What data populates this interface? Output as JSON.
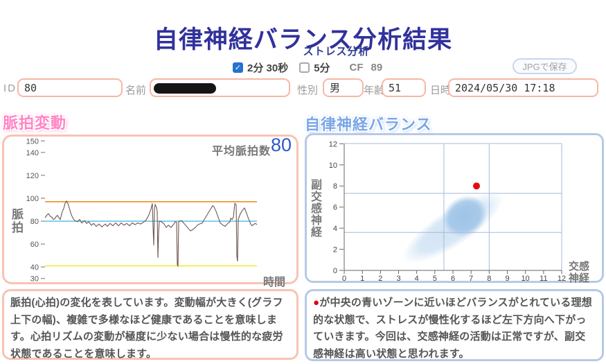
{
  "page": {
    "title": "自律神経バランス分析結果",
    "subtitle": "ストレス分析"
  },
  "controls": {
    "duration_2min_label": "2分 30秒",
    "duration_5min_label": "5分",
    "checkmark": "✓",
    "cf_label": "CF",
    "cf_value": "89",
    "save_button": "JPGで保存"
  },
  "patient": {
    "id_label": "ID",
    "id_value": "80",
    "name_label": "名前",
    "gender_label": "性別",
    "gender_value": "男",
    "age_label": "年齢",
    "age_value": "51",
    "datetime_label": "日時",
    "datetime_value": "2024/05/30 17:18"
  },
  "pulse_panel": {
    "header": "脈拍変動",
    "avg_label": "平均脈拍数",
    "avg_value": "80",
    "y_axis_label": "脈拍",
    "x_axis_label": "時間",
    "description": "脈拍(心拍)の変化を表しています。変動幅が大きく(グラフ上下の幅)、複雑で多様なほど健康であることを意味します。心拍リズムの変動が極度に少ない場合は慢性的な疲労状態であることを意味します。"
  },
  "balance_panel": {
    "header": "自律神経バランス",
    "y_axis_label": "副交感神経",
    "x_axis_label": "交感神経",
    "description_marker": "●",
    "description": "が中央の青いゾーンに近いほどバランスがとれている理想的な状態で、ストレスが慢性化するほど左下方向へ下がっていきます。今回は、交感神経の活動は正常ですが、副交感神経は高い状態と思われます。"
  },
  "chart_data": [
    {
      "type": "line",
      "title": "脈拍変動",
      "ylabel": "脈拍",
      "xlabel": "時間",
      "average_pulse": 80,
      "y_ticks": [
        150,
        140,
        120,
        100,
        80,
        60,
        40,
        30
      ],
      "ylim": [
        28,
        152
      ],
      "grid": false,
      "reference_lines": [
        {
          "value": 97,
          "color": "#f08c28"
        },
        {
          "value": 80,
          "color": "#5ac0ec"
        },
        {
          "value": 41,
          "color": "#f3ea38"
        }
      ],
      "series": [
        {
          "name": "pulse",
          "color": "#6d564e",
          "points": [
            [
              65,
              83
            ],
            [
              68,
              85.5
            ],
            [
              70,
              86.5
            ],
            [
              73,
              84
            ],
            [
              75,
              83.5
            ],
            [
              77,
              81.5
            ],
            [
              79,
              82
            ],
            [
              81,
              84
            ],
            [
              83,
              85
            ],
            [
              85,
              83
            ],
            [
              87,
              81.5
            ],
            [
              90,
              88.5
            ],
            [
              92,
              91
            ],
            [
              94,
              95.5
            ],
            [
              96,
              97.5
            ],
            [
              98,
              95.5
            ],
            [
              100,
              91.5
            ],
            [
              103,
              85.5
            ],
            [
              106,
              82
            ],
            [
              108,
              80.5
            ],
            [
              112,
              79.5
            ],
            [
              115,
              81.5
            ],
            [
              118,
              78.5
            ],
            [
              122,
              80.5
            ],
            [
              125,
              78
            ],
            [
              128,
              79.5
            ],
            [
              132,
              76.5
            ],
            [
              135,
              78
            ],
            [
              139,
              75.5
            ],
            [
              143,
              77.5
            ],
            [
              147,
              75
            ],
            [
              152,
              77.5
            ],
            [
              155,
              75.5
            ],
            [
              159,
              78
            ],
            [
              163,
              76
            ],
            [
              167,
              78.5
            ],
            [
              171,
              76
            ],
            [
              175,
              78.5
            ],
            [
              179,
              76.5
            ],
            [
              183,
              78
            ],
            [
              187,
              76
            ],
            [
              191,
              78.5
            ],
            [
              195,
              77
            ],
            [
              199,
              78.5
            ],
            [
              203,
              77.5
            ],
            [
              207,
              79
            ],
            [
              211,
              81
            ],
            [
              215,
              85.5
            ],
            [
              218,
              90.5
            ],
            [
              220,
              95.5
            ],
            [
              221,
              75
            ],
            [
              222,
              59
            ],
            [
              223,
              90
            ],
            [
              224,
              94.5
            ],
            [
              226,
              92
            ],
            [
              227,
              88.5
            ],
            [
              228,
              48
            ],
            [
              229,
              70
            ],
            [
              230,
              80
            ],
            [
              233,
              79.5
            ],
            [
              237,
              77.5
            ],
            [
              240,
              74.5
            ],
            [
              243,
              76.5
            ],
            [
              247,
              74.5
            ],
            [
              251,
              77.5
            ],
            [
              253,
              79.5
            ],
            [
              255,
              79
            ],
            [
              256,
              42
            ],
            [
              257,
              41
            ],
            [
              258,
              79.5
            ],
            [
              262,
              80.5
            ],
            [
              265,
              78.5
            ],
            [
              268,
              76.5
            ],
            [
              272,
              73.5
            ],
            [
              275,
              71.5
            ],
            [
              278,
              72.5
            ],
            [
              282,
              74.5
            ],
            [
              285,
              76.5
            ],
            [
              288,
              77.5
            ],
            [
              292,
              78.5
            ],
            [
              295,
              81.5
            ],
            [
              298,
              84.5
            ],
            [
              302,
              88.5
            ],
            [
              305,
              91.5
            ],
            [
              307,
              93.5
            ],
            [
              309,
              92.5
            ],
            [
              312,
              88.5
            ],
            [
              315,
              83.5
            ],
            [
              318,
              78.5
            ],
            [
              322,
              76.5
            ],
            [
              325,
              75.5
            ],
            [
              328,
              77.5
            ],
            [
              332,
              79.5
            ],
            [
              333,
              82.5
            ],
            [
              335,
              81.5
            ],
            [
              337,
              83.5
            ],
            [
              339,
              95.5
            ],
            [
              341,
              94.5
            ],
            [
              342,
              49
            ],
            [
              343,
              45
            ],
            [
              344,
              81.5
            ],
            [
              347,
              86.5
            ],
            [
              350,
              89.5
            ],
            [
              353,
              91.5
            ],
            [
              355,
              88.5
            ],
            [
              358,
              83.5
            ],
            [
              362,
              77.5
            ],
            [
              364,
              76
            ],
            [
              367,
              77.5
            ],
            [
              369,
              78
            ],
            [
              371,
              77
            ]
          ]
        }
      ]
    },
    {
      "type": "scatter",
      "title": "自律神経バランス",
      "xlabel": "交感神経",
      "ylabel": "副交感神経",
      "xlim": [
        0,
        12
      ],
      "ylim": [
        0,
        12
      ],
      "x_ticks": [
        0,
        1,
        2,
        3,
        4,
        5,
        6,
        7,
        8,
        9,
        10,
        11,
        12
      ],
      "y_ticks": [
        0,
        2,
        4,
        6,
        8,
        10,
        12
      ],
      "zone_lines": {
        "x": [
          5.5,
          8.0
        ],
        "y": [
          3.6,
          7.3
        ]
      },
      "zones": [
        {
          "cx": 6.0,
          "cy": 4.05,
          "rx": 3.25,
          "ry": 1.75,
          "rot": -33,
          "gradient": "zoneOuter"
        },
        {
          "cx": 6.65,
          "cy": 5.15,
          "rx": 1.28,
          "ry": 1.85,
          "rot": -33,
          "gradient": "zoneInner"
        }
      ],
      "point": {
        "x": 7.3,
        "y": 8.0,
        "color": "#e20d12"
      }
    }
  ]
}
